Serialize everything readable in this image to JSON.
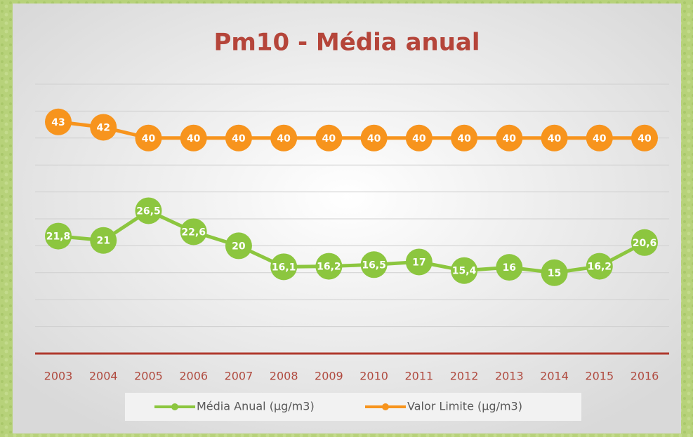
{
  "chart_data": {
    "type": "line",
    "title": "Pm10 - Média anual",
    "categories": [
      "2003",
      "2004",
      "2005",
      "2006",
      "2007",
      "2008",
      "2009",
      "2010",
      "2011",
      "2012",
      "2013",
      "2014",
      "2015",
      "2016"
    ],
    "series": [
      {
        "name": "Média Anual (µg/m3)",
        "color": "#8cc63f",
        "values": [
          21.8,
          21,
          26.5,
          22.6,
          20,
          16.1,
          16.2,
          16.5,
          17,
          15.4,
          16,
          15,
          16.2,
          20.6
        ],
        "value_labels": [
          "21,8",
          "21",
          "26,5",
          "22,6",
          "20",
          "16,1",
          "16,2",
          "16,5",
          "17",
          "15,4",
          "16",
          "15",
          "16,2",
          "20,6"
        ]
      },
      {
        "name": "Valor Limite (µg/m3)",
        "color": "#f7941d",
        "values": [
          43,
          42,
          40,
          40,
          40,
          40,
          40,
          40,
          40,
          40,
          40,
          40,
          40,
          40
        ]
      }
    ],
    "ylim": [
      0,
      50
    ],
    "yticks": [
      0,
      5,
      10,
      15,
      20,
      25,
      30,
      35,
      40,
      45,
      50
    ],
    "grid": true,
    "legend": "bottom"
  }
}
